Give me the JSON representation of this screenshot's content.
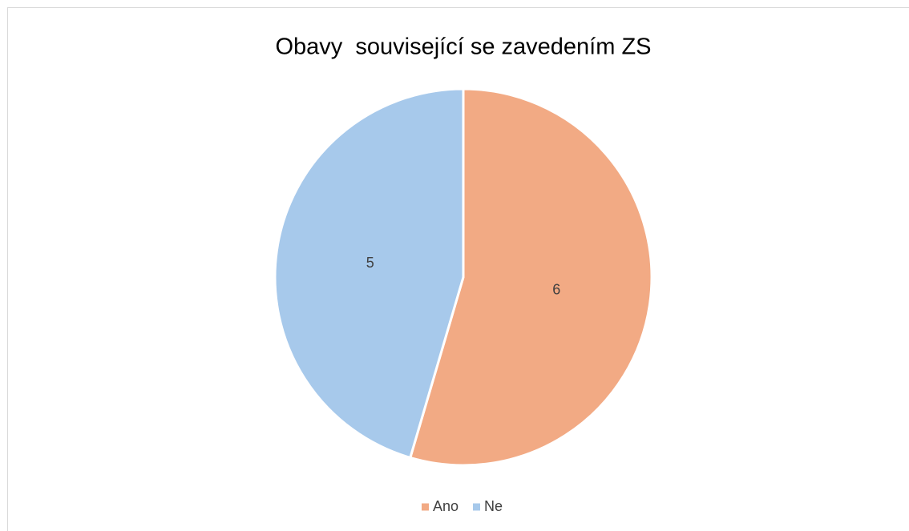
{
  "chart_data": {
    "type": "pie",
    "title": "Obavy  související se zavedením ZS",
    "categories": [
      "Ano",
      "Ne"
    ],
    "values": [
      6,
      5
    ],
    "colors": [
      "#F2AA84",
      "#A7C9EB"
    ],
    "legend": "bottom"
  }
}
